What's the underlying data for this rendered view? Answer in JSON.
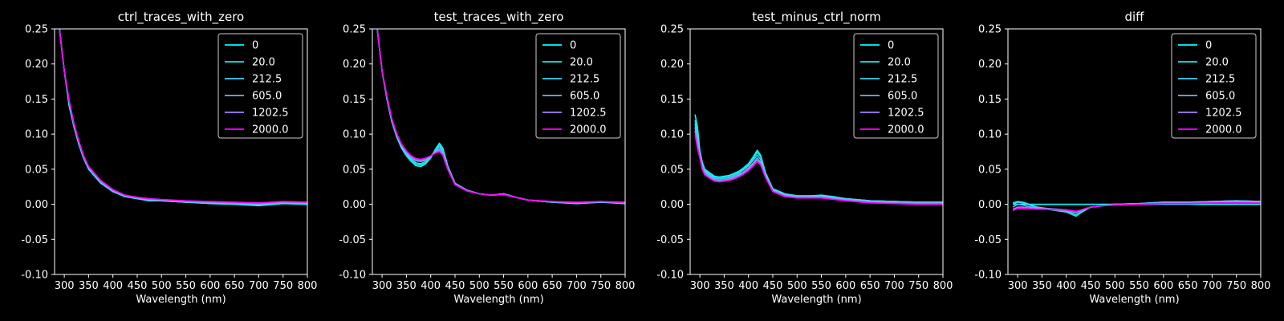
{
  "chart_data": [
    {
      "type": "line",
      "title": "ctrl_traces_with_zero",
      "xlabel": "Wavelength (nm)",
      "xlim": [
        280,
        800
      ],
      "ylim": [
        -0.1,
        0.25
      ],
      "xticks": [
        300,
        350,
        400,
        450,
        500,
        550,
        600,
        650,
        700,
        750,
        800
      ],
      "yticks": [
        -0.1,
        -0.05,
        0.0,
        0.05,
        0.1,
        0.15,
        0.2,
        0.25
      ],
      "legend_position": "upper-right",
      "x": [
        290,
        300,
        310,
        320,
        330,
        340,
        350,
        375,
        400,
        425,
        450,
        475,
        500,
        550,
        600,
        650,
        700,
        750,
        800
      ],
      "series": [
        {
          "name": "0",
          "color": "#00ffff",
          "values": [
            0.25,
            0.19,
            0.14,
            0.11,
            0.085,
            0.065,
            0.05,
            0.03,
            0.018,
            0.011,
            0.008,
            0.005,
            0.005,
            0.003,
            0.001,
            0.0,
            -0.002,
            0.001,
            0.0
          ]
        },
        {
          "name": "20.0",
          "color": "#1ae5e5",
          "values": [
            0.25,
            0.19,
            0.145,
            0.112,
            0.087,
            0.066,
            0.051,
            0.031,
            0.018,
            0.011,
            0.008,
            0.006,
            0.005,
            0.003,
            0.002,
            0.001,
            -0.001,
            0.002,
            0.001
          ]
        },
        {
          "name": "212.5",
          "color": "#40d4f4",
          "values": [
            0.25,
            0.19,
            0.145,
            0.112,
            0.087,
            0.067,
            0.052,
            0.031,
            0.019,
            0.012,
            0.008,
            0.006,
            0.005,
            0.003,
            0.002,
            0.001,
            -0.001,
            0.002,
            0.001
          ]
        },
        {
          "name": "605.0",
          "color": "#66b3ff",
          "values": [
            0.25,
            0.19,
            0.146,
            0.113,
            0.088,
            0.067,
            0.052,
            0.032,
            0.019,
            0.012,
            0.009,
            0.007,
            0.006,
            0.004,
            0.003,
            0.002,
            0.001,
            0.003,
            0.002
          ]
        },
        {
          "name": "1202.5",
          "color": "#a97bff",
          "values": [
            0.25,
            0.19,
            0.147,
            0.114,
            0.089,
            0.068,
            0.053,
            0.033,
            0.02,
            0.013,
            0.009,
            0.007,
            0.006,
            0.004,
            0.003,
            0.002,
            0.001,
            0.003,
            0.002
          ]
        },
        {
          "name": "2000.0",
          "color": "#ff00ff",
          "values": [
            0.25,
            0.19,
            0.148,
            0.115,
            0.09,
            0.069,
            0.054,
            0.034,
            0.021,
            0.013,
            0.01,
            0.008,
            0.007,
            0.005,
            0.004,
            0.003,
            0.002,
            0.004,
            0.003
          ]
        }
      ]
    },
    {
      "type": "line",
      "title": "test_traces_with_zero",
      "xlabel": "Wavelength (nm)",
      "xlim": [
        280,
        800
      ],
      "ylim": [
        -0.1,
        0.25
      ],
      "xticks": [
        300,
        350,
        400,
        450,
        500,
        550,
        600,
        650,
        700,
        750,
        800
      ],
      "yticks": [
        -0.1,
        -0.05,
        0.0,
        0.05,
        0.1,
        0.15,
        0.2,
        0.25
      ],
      "legend_position": "upper-right",
      "x": [
        290,
        300,
        310,
        320,
        330,
        340,
        350,
        360,
        370,
        380,
        390,
        400,
        410,
        418,
        425,
        435,
        450,
        475,
        500,
        525,
        550,
        575,
        600,
        650,
        700,
        750,
        800
      ],
      "series": [
        {
          "name": "0",
          "color": "#00ffff",
          "values": [
            0.25,
            0.19,
            0.15,
            0.118,
            0.096,
            0.08,
            0.069,
            0.061,
            0.055,
            0.054,
            0.058,
            0.066,
            0.079,
            0.087,
            0.08,
            0.055,
            0.03,
            0.02,
            0.015,
            0.013,
            0.015,
            0.01,
            0.006,
            0.003,
            0.001,
            0.003,
            0.001
          ]
        },
        {
          "name": "20.0",
          "color": "#1ae5e5",
          "values": [
            0.25,
            0.19,
            0.15,
            0.118,
            0.097,
            0.081,
            0.07,
            0.062,
            0.057,
            0.056,
            0.059,
            0.067,
            0.078,
            0.085,
            0.078,
            0.054,
            0.03,
            0.02,
            0.015,
            0.013,
            0.015,
            0.01,
            0.006,
            0.003,
            0.001,
            0.003,
            0.001
          ]
        },
        {
          "name": "212.5",
          "color": "#40d4f4",
          "values": [
            0.25,
            0.19,
            0.151,
            0.119,
            0.098,
            0.082,
            0.072,
            0.064,
            0.059,
            0.058,
            0.061,
            0.068,
            0.077,
            0.082,
            0.076,
            0.053,
            0.029,
            0.02,
            0.015,
            0.013,
            0.015,
            0.01,
            0.006,
            0.003,
            0.002,
            0.003,
            0.002
          ]
        },
        {
          "name": "605.0",
          "color": "#66b3ff",
          "values": [
            0.25,
            0.19,
            0.152,
            0.12,
            0.099,
            0.084,
            0.074,
            0.066,
            0.062,
            0.061,
            0.063,
            0.068,
            0.075,
            0.079,
            0.073,
            0.052,
            0.029,
            0.02,
            0.015,
            0.013,
            0.014,
            0.01,
            0.006,
            0.003,
            0.002,
            0.003,
            0.002
          ]
        },
        {
          "name": "1202.5",
          "color": "#a97bff",
          "values": [
            0.25,
            0.19,
            0.153,
            0.121,
            0.1,
            0.085,
            0.075,
            0.068,
            0.064,
            0.063,
            0.065,
            0.069,
            0.074,
            0.077,
            0.071,
            0.051,
            0.028,
            0.019,
            0.015,
            0.013,
            0.014,
            0.01,
            0.006,
            0.004,
            0.002,
            0.004,
            0.002
          ]
        },
        {
          "name": "2000.0",
          "color": "#ff00ff",
          "values": [
            0.25,
            0.19,
            0.154,
            0.122,
            0.101,
            0.086,
            0.076,
            0.069,
            0.065,
            0.064,
            0.066,
            0.069,
            0.073,
            0.075,
            0.07,
            0.05,
            0.028,
            0.019,
            0.015,
            0.013,
            0.014,
            0.01,
            0.006,
            0.004,
            0.003,
            0.004,
            0.003
          ]
        }
      ]
    },
    {
      "type": "line",
      "title": "test_minus_ctrl_norm",
      "xlabel": "Wavelength (nm)",
      "xlim": [
        280,
        800
      ],
      "ylim": [
        -0.1,
        0.25
      ],
      "xticks": [
        300,
        350,
        400,
        450,
        500,
        550,
        600,
        650,
        700,
        750,
        800
      ],
      "yticks": [
        -0.1,
        -0.05,
        0.0,
        0.05,
        0.1,
        0.15,
        0.2,
        0.25
      ],
      "legend_position": "upper-right",
      "x": [
        290,
        295,
        300,
        305,
        310,
        320,
        330,
        340,
        350,
        360,
        370,
        380,
        390,
        400,
        410,
        418,
        425,
        435,
        450,
        475,
        500,
        525,
        550,
        575,
        600,
        650,
        700,
        750,
        800
      ],
      "series": [
        {
          "name": "0",
          "color": "#00ffff",
          "values": [
            0.128,
            0.11,
            0.076,
            0.06,
            0.05,
            0.045,
            0.04,
            0.039,
            0.04,
            0.041,
            0.044,
            0.047,
            0.052,
            0.058,
            0.068,
            0.077,
            0.07,
            0.045,
            0.022,
            0.015,
            0.012,
            0.012,
            0.013,
            0.011,
            0.008,
            0.005,
            0.004,
            0.003,
            0.003
          ]
        },
        {
          "name": "20.0",
          "color": "#1ae5e5",
          "values": [
            0.12,
            0.1,
            0.074,
            0.058,
            0.049,
            0.044,
            0.039,
            0.038,
            0.039,
            0.04,
            0.043,
            0.046,
            0.051,
            0.057,
            0.066,
            0.074,
            0.068,
            0.044,
            0.022,
            0.015,
            0.012,
            0.012,
            0.012,
            0.01,
            0.008,
            0.005,
            0.004,
            0.003,
            0.003
          ]
        },
        {
          "name": "212.5",
          "color": "#40d4f4",
          "values": [
            0.115,
            0.095,
            0.072,
            0.056,
            0.047,
            0.042,
            0.037,
            0.036,
            0.037,
            0.038,
            0.041,
            0.044,
            0.049,
            0.055,
            0.063,
            0.07,
            0.064,
            0.042,
            0.021,
            0.014,
            0.012,
            0.011,
            0.012,
            0.01,
            0.008,
            0.005,
            0.004,
            0.003,
            0.003
          ]
        },
        {
          "name": "605.0",
          "color": "#66b3ff",
          "values": [
            0.11,
            0.09,
            0.07,
            0.054,
            0.045,
            0.04,
            0.035,
            0.034,
            0.035,
            0.036,
            0.039,
            0.042,
            0.046,
            0.052,
            0.059,
            0.066,
            0.06,
            0.04,
            0.02,
            0.013,
            0.011,
            0.011,
            0.011,
            0.009,
            0.007,
            0.004,
            0.003,
            0.002,
            0.002
          ]
        },
        {
          "name": "1202.5",
          "color": "#a97bff",
          "values": [
            0.105,
            0.085,
            0.068,
            0.052,
            0.043,
            0.038,
            0.034,
            0.033,
            0.034,
            0.035,
            0.037,
            0.04,
            0.044,
            0.05,
            0.057,
            0.063,
            0.058,
            0.039,
            0.019,
            0.012,
            0.01,
            0.01,
            0.01,
            0.008,
            0.006,
            0.003,
            0.002,
            0.001,
            0.001
          ]
        },
        {
          "name": "2000.0",
          "color": "#ff00ff",
          "values": [
            0.1,
            0.08,
            0.066,
            0.05,
            0.042,
            0.037,
            0.033,
            0.032,
            0.033,
            0.034,
            0.036,
            0.039,
            0.043,
            0.048,
            0.055,
            0.061,
            0.056,
            0.038,
            0.018,
            0.011,
            0.009,
            0.009,
            0.009,
            0.007,
            0.005,
            0.002,
            0.001,
            0.0,
            0.0
          ]
        }
      ]
    },
    {
      "type": "line",
      "title": "diff",
      "xlabel": "Wavelength (nm)",
      "xlim": [
        280,
        800
      ],
      "ylim": [
        -0.1,
        0.25
      ],
      "xticks": [
        300,
        350,
        400,
        450,
        500,
        550,
        600,
        650,
        700,
        750,
        800
      ],
      "yticks": [
        -0.1,
        -0.05,
        0.0,
        0.05,
        0.1,
        0.15,
        0.2,
        0.25
      ],
      "legend_position": "upper-right",
      "x": [
        290,
        300,
        310,
        320,
        340,
        360,
        380,
        400,
        410,
        420,
        430,
        450,
        475,
        500,
        550,
        600,
        650,
        700,
        750,
        800
      ],
      "series": [
        {
          "name": "0",
          "color": "#00ffff",
          "values": [
            0.0,
            0.0,
            0.0,
            0.0,
            0.0,
            0.0,
            0.0,
            0.0,
            0.0,
            0.0,
            0.0,
            0.0,
            0.0,
            0.0,
            0.0,
            0.0,
            0.0,
            0.0,
            0.0,
            0.0
          ]
        },
        {
          "name": "20.0",
          "color": "#1ae5e5",
          "values": [
            0.002,
            0.004,
            0.003,
            0.001,
            -0.004,
            -0.007,
            -0.009,
            -0.011,
            -0.014,
            -0.017,
            -0.012,
            -0.004,
            -0.002,
            0.0,
            0.001,
            0.003,
            0.003,
            0.004,
            0.005,
            0.004
          ]
        },
        {
          "name": "212.5",
          "color": "#40d4f4",
          "values": [
            0.0,
            0.003,
            0.002,
            0.0,
            -0.004,
            -0.006,
            -0.008,
            -0.01,
            -0.012,
            -0.015,
            -0.011,
            -0.004,
            -0.002,
            0.0,
            0.001,
            0.003,
            0.003,
            0.004,
            0.005,
            0.004
          ]
        },
        {
          "name": "605.0",
          "color": "#66b3ff",
          "values": [
            -0.004,
            0.0,
            -0.001,
            -0.003,
            -0.005,
            -0.006,
            -0.007,
            -0.008,
            -0.01,
            -0.012,
            -0.009,
            -0.004,
            -0.002,
            0.0,
            0.001,
            0.002,
            0.002,
            0.003,
            0.004,
            0.003
          ]
        },
        {
          "name": "1202.5",
          "color": "#a97bff",
          "values": [
            -0.007,
            -0.004,
            -0.004,
            -0.005,
            -0.006,
            -0.007,
            -0.007,
            -0.008,
            -0.009,
            -0.011,
            -0.008,
            -0.004,
            -0.002,
            0.0,
            0.0,
            0.002,
            0.002,
            0.002,
            0.003,
            0.002
          ]
        },
        {
          "name": "2000.0",
          "color": "#ff00ff",
          "values": [
            -0.009,
            -0.006,
            -0.006,
            -0.006,
            -0.007,
            -0.007,
            -0.008,
            -0.008,
            -0.009,
            -0.01,
            -0.008,
            -0.004,
            -0.002,
            -0.001,
            0.0,
            0.001,
            0.001,
            0.002,
            0.002,
            0.002
          ]
        }
      ]
    }
  ]
}
